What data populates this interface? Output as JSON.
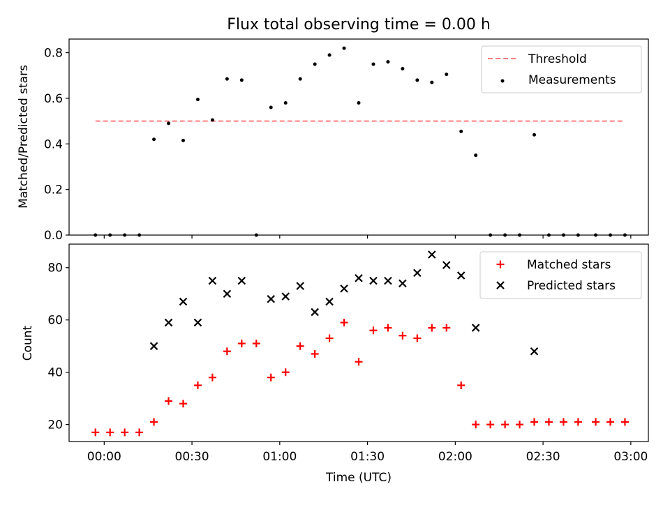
{
  "chart_data": [
    {
      "type": "scatter",
      "title": "Flux total observing time = 0.00 h",
      "ylabel": "Matched/Predicted stars",
      "xlim_minutes": [
        -12,
        186
      ],
      "ylim": [
        0,
        0.86
      ],
      "yticks": [
        0.0,
        0.2,
        0.4,
        0.6,
        0.8
      ],
      "ytick_labels": [
        "0.0",
        "0.2",
        "0.4",
        "0.6",
        "0.8"
      ],
      "xticks_minutes": [
        0,
        30,
        60,
        90,
        120,
        150,
        180
      ],
      "threshold": {
        "name": "Threshold",
        "value": 0.5,
        "x_range_minutes": [
          -3,
          178
        ],
        "color": "#ff7f7f"
      },
      "series": [
        {
          "name": "Measurements",
          "color": "#000000",
          "x_minutes": [
            -3,
            2,
            7,
            12,
            17,
            22,
            27,
            32,
            37,
            42,
            47,
            52,
            57,
            62,
            67,
            72,
            77,
            82,
            87,
            92,
            97,
            102,
            107,
            112,
            117,
            122,
            127,
            132,
            137,
            142,
            147,
            152,
            157,
            162,
            168,
            173,
            178
          ],
          "values": [
            0,
            0,
            0,
            0,
            0.42,
            0.49,
            0.415,
            0.595,
            0.505,
            0.685,
            0.68,
            0,
            0.56,
            0.58,
            0.685,
            0.75,
            0.79,
            0.82,
            0.58,
            0.75,
            0.76,
            0.73,
            0.68,
            0.67,
            0.705,
            0.455,
            0.35,
            0,
            0,
            0,
            0.44,
            0,
            0,
            0,
            0,
            0,
            0
          ]
        }
      ],
      "legend": {
        "position": "top-right",
        "entries": [
          "Threshold",
          "Measurements"
        ]
      }
    },
    {
      "type": "scatter",
      "title": "",
      "xlabel": "Time (UTC)",
      "ylabel": "Count",
      "xlim_minutes": [
        -12,
        186
      ],
      "ylim": [
        13.5,
        89
      ],
      "yticks": [
        20,
        40,
        60,
        80
      ],
      "ytick_labels": [
        "20",
        "40",
        "60",
        "80"
      ],
      "xticks_minutes": [
        0,
        30,
        60,
        90,
        120,
        150,
        180
      ],
      "xtick_labels": [
        "00:00",
        "00:30",
        "01:00",
        "01:30",
        "02:00",
        "02:30",
        "03:00"
      ],
      "series": [
        {
          "name": "Matched stars",
          "marker": "plus",
          "color": "#ff0000",
          "x_minutes": [
            -3,
            2,
            7,
            12,
            17,
            22,
            27,
            32,
            37,
            42,
            47,
            52,
            57,
            62,
            67,
            72,
            77,
            82,
            87,
            92,
            97,
            102,
            107,
            112,
            117,
            122,
            127,
            132,
            137,
            142,
            147,
            152,
            157,
            162,
            168,
            173,
            178
          ],
          "values": [
            17,
            17,
            17,
            17,
            21,
            29,
            28,
            35,
            38,
            48,
            51,
            51,
            38,
            40,
            50,
            47,
            53,
            59,
            44,
            56,
            57,
            54,
            53,
            57,
            57,
            35,
            20,
            20,
            20,
            20,
            21,
            21,
            21,
            21,
            21,
            21,
            21
          ]
        },
        {
          "name": "Predicted stars",
          "marker": "x",
          "color": "#000000",
          "x_minutes": [
            17,
            22,
            27,
            32,
            37,
            42,
            47,
            57,
            62,
            67,
            72,
            77,
            82,
            87,
            92,
            97,
            102,
            107,
            112,
            117,
            122,
            127,
            147
          ],
          "values": [
            50,
            59,
            67,
            59,
            75,
            70,
            75,
            68,
            69,
            73,
            63,
            67,
            72,
            76,
            75,
            75,
            74,
            78,
            85,
            81,
            77,
            57,
            48
          ]
        }
      ],
      "legend": {
        "position": "top-right",
        "entries": [
          "Matched stars",
          "Predicted stars"
        ]
      }
    }
  ]
}
